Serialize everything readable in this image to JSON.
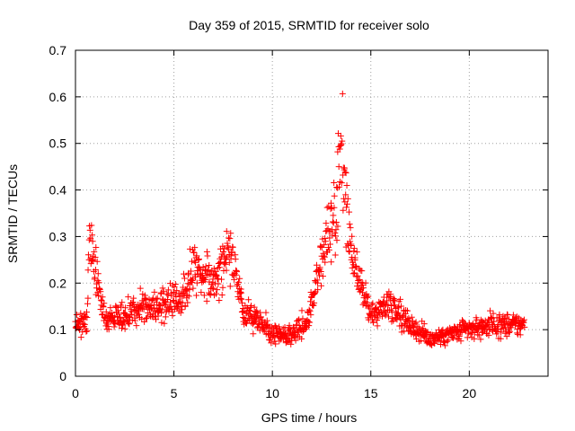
{
  "chart_data": {
    "type": "scatter",
    "title": "Day 359 of 2015, SRMTID for receiver solo",
    "xlabel": "GPS time / hours",
    "ylabel": "SRMTID / TECUs",
    "xlim": [
      0,
      24
    ],
    "ylim": [
      0,
      0.7
    ],
    "xticks": [
      0,
      5,
      10,
      15,
      20
    ],
    "xtick_labels": [
      "0",
      "5",
      "10",
      "15",
      "20"
    ],
    "yticks": [
      0,
      0.1,
      0.2,
      0.3,
      0.4,
      0.5,
      0.6,
      0.7
    ],
    "ytick_labels": [
      "0",
      "0.1",
      "0.2",
      "0.3",
      "0.4",
      "0.5",
      "0.6",
      "0.7"
    ],
    "grid": true,
    "marker": "plus",
    "marker_color": "#ff0000",
    "series": [
      {
        "name": "SRMTID",
        "profile_description_hours": [
          0,
          0.6,
          0.7,
          1.5,
          2.5,
          3.5,
          4.5,
          5.5,
          6,
          7,
          7.8,
          8.5,
          9.2,
          10,
          11,
          11.8,
          12.5,
          13.2,
          13.5,
          14,
          15,
          16,
          17,
          18,
          19,
          20,
          21,
          22,
          22.8
        ],
        "profile_median_tecu": [
          0.11,
          0.12,
          0.3,
          0.12,
          0.13,
          0.15,
          0.15,
          0.17,
          0.25,
          0.2,
          0.28,
          0.14,
          0.12,
          0.09,
          0.09,
          0.12,
          0.25,
          0.35,
          0.5,
          0.25,
          0.13,
          0.16,
          0.11,
          0.08,
          0.09,
          0.1,
          0.11,
          0.11,
          0.11
        ]
      }
    ]
  }
}
